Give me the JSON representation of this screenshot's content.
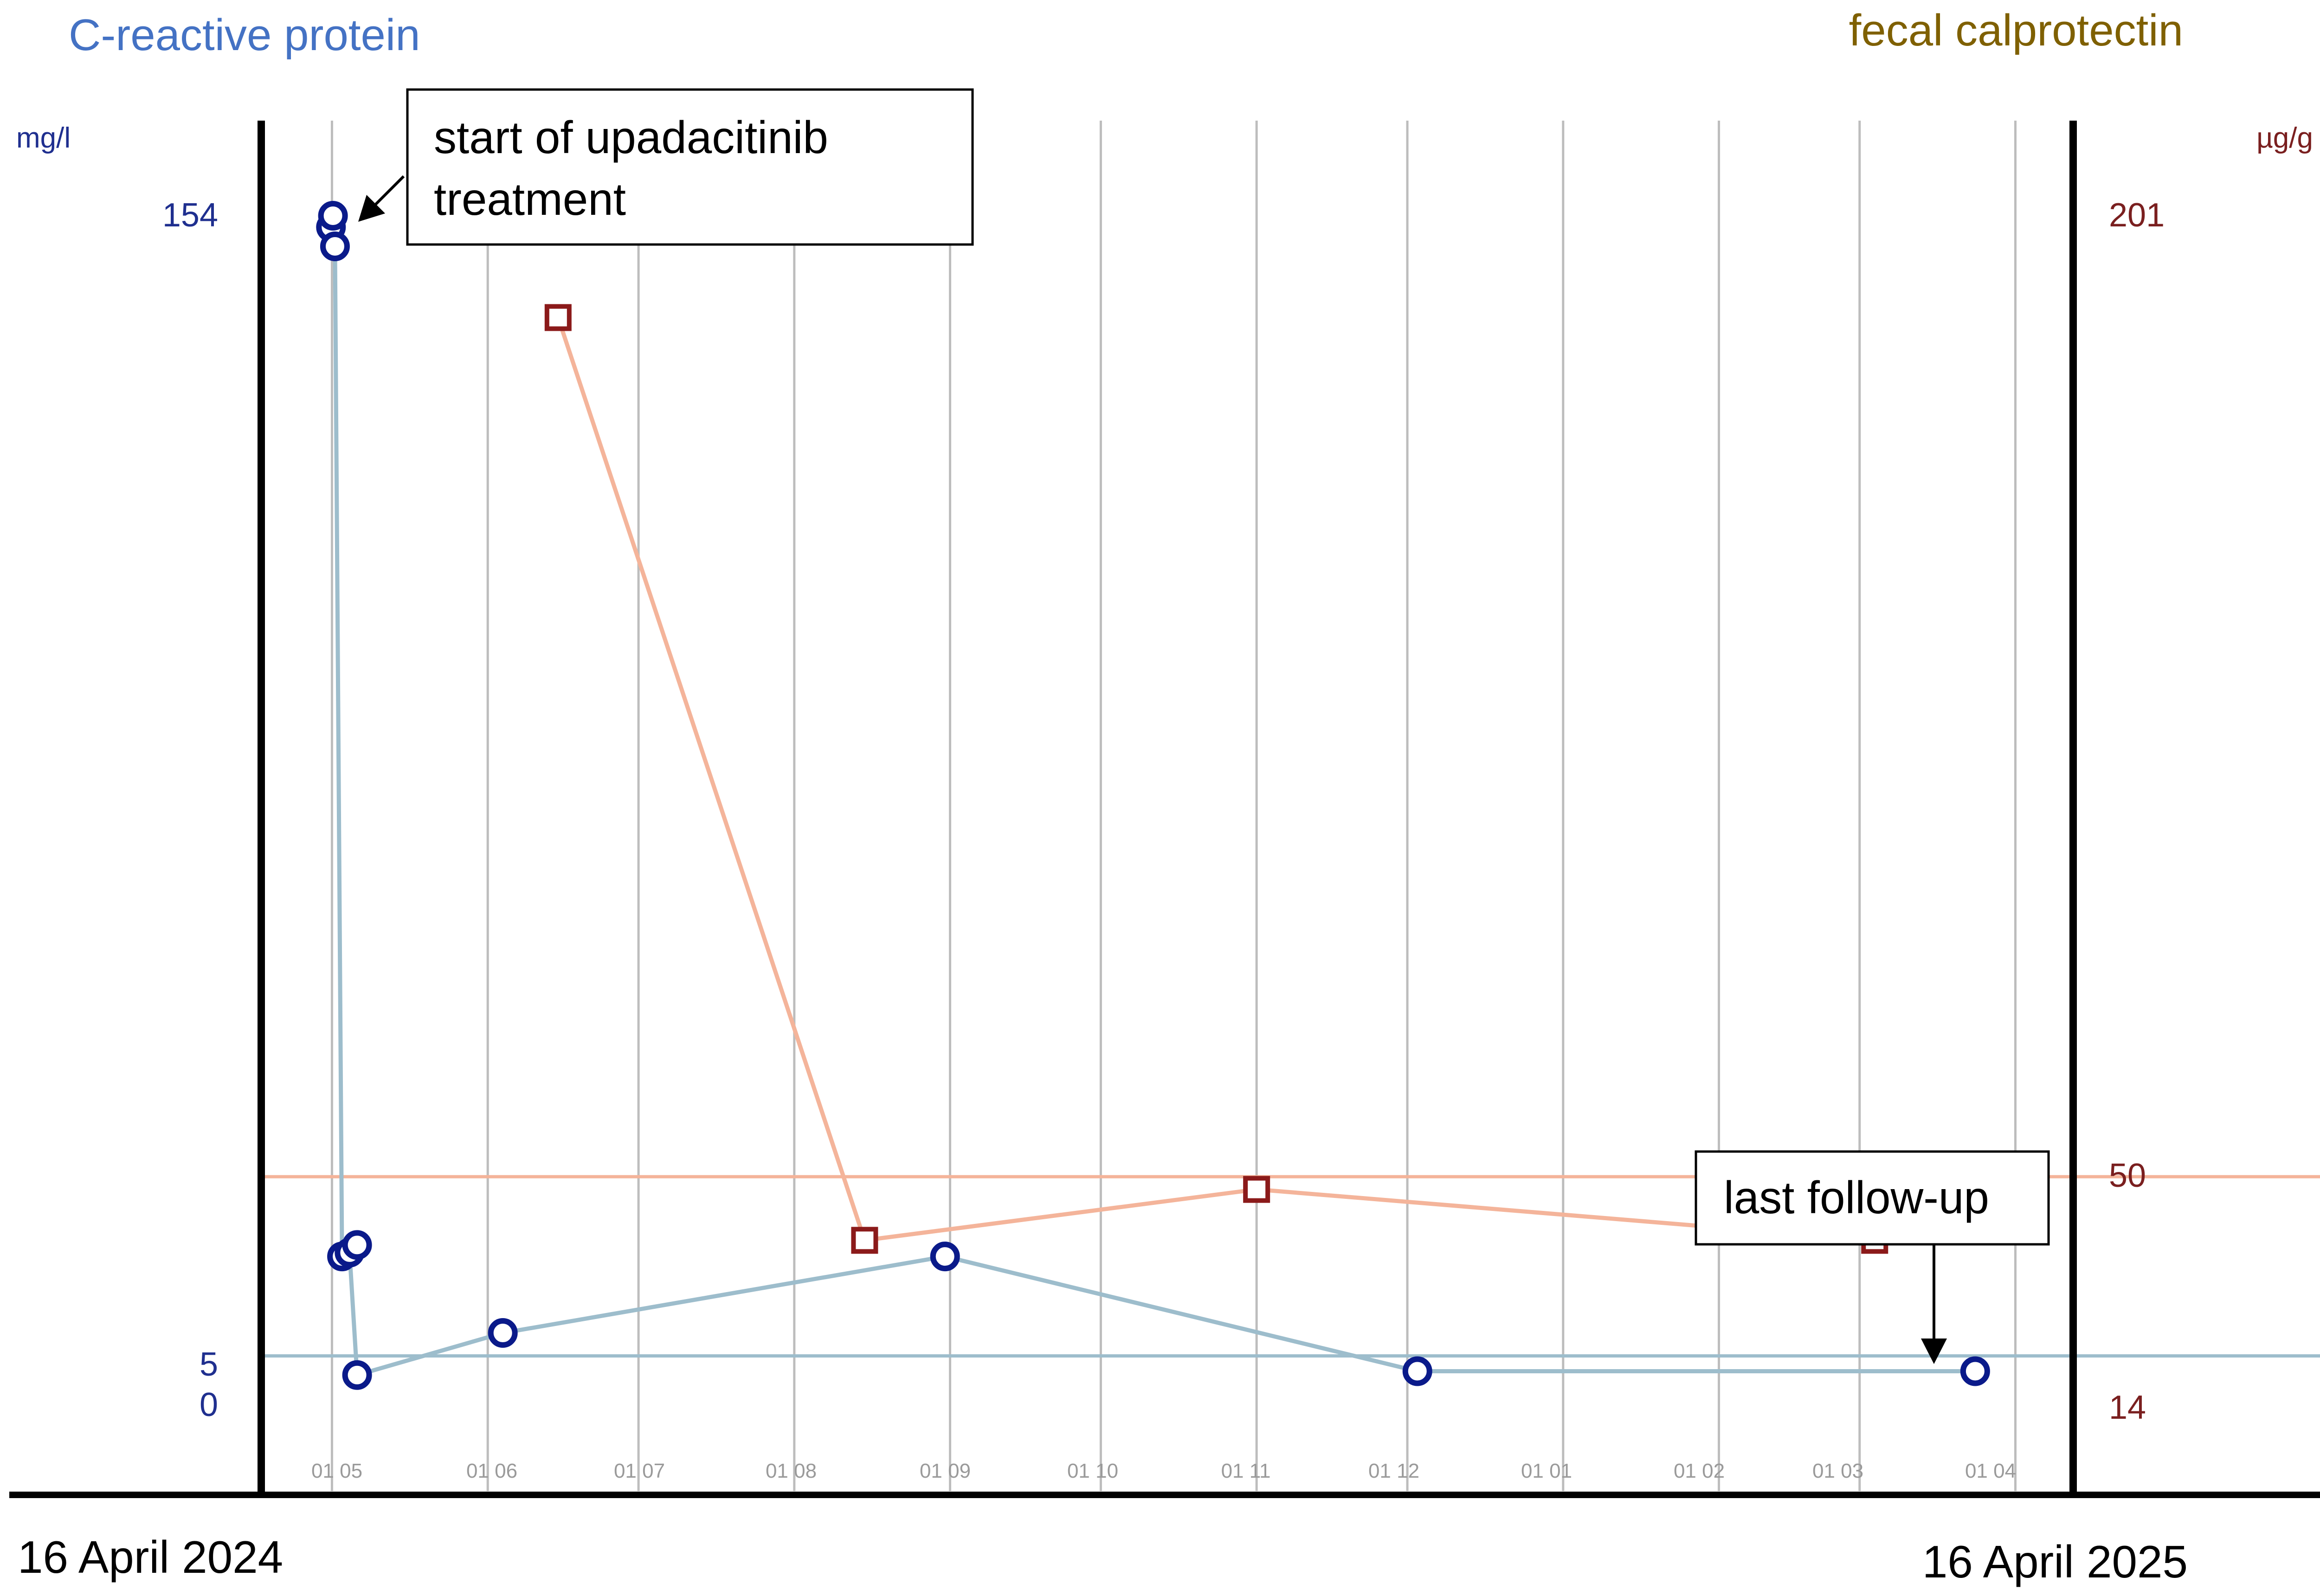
{
  "chart_data": {
    "type": "line",
    "title_left": "C-reactive protein",
    "title_right": "fecal calprotectin",
    "y_left": {
      "unit": "mg/l",
      "ticks": [
        "154",
        "5",
        "0"
      ],
      "values": [
        154,
        5,
        0
      ],
      "ylim": [
        0,
        154
      ]
    },
    "y_right": {
      "unit": "µg/g",
      "ticks": [
        "201",
        "50",
        "14"
      ],
      "values": [
        201,
        50,
        14
      ],
      "ylim": [
        14,
        201
      ]
    },
    "x": {
      "start_label": "16 April 2024",
      "end_label": "16 April 2025",
      "month_labels": [
        "01 05",
        "01 06",
        "01 07",
        "01 08",
        "01 09",
        "01 10",
        "01 11",
        "01 12",
        "01 01",
        "01 02",
        "01 03",
        "01 04"
      ],
      "unit": "days since 16 April 2024"
    },
    "reference_lines": [
      {
        "axis": "left",
        "value": 5,
        "color": "#9dbdcc"
      },
      {
        "axis": "right",
        "value": 50,
        "color": "#f4b49a"
      }
    ],
    "series": [
      {
        "name": "C-reactive protein",
        "axis": "left",
        "marker": "circle",
        "line_color": "#9dbdcc",
        "marker_color": "#0a1a8a",
        "points": [
          {
            "x": 14.8,
            "y": 152.5
          },
          {
            "x": 15.2,
            "y": 154
          },
          {
            "x": 15.6,
            "y": 150
          },
          {
            "x": 17,
            "y": 18
          },
          {
            "x": 18.5,
            "y": 18.5
          },
          {
            "x": 20,
            "y": 2.5
          },
          {
            "x": 49,
            "y": 8
          },
          {
            "x": 137,
            "y": 18
          },
          {
            "x": 231,
            "y": 3
          },
          {
            "x": 342,
            "y": 3
          },
          {
            "x": 20,
            "y": 19.5
          }
        ]
      },
      {
        "name": "fecal calprotectin",
        "axis": "right",
        "marker": "square",
        "line_color": "#f4b49a",
        "marker_color": "#8b1a1a",
        "points": [
          {
            "x": 60,
            "y": 185
          },
          {
            "x": 121,
            "y": 40
          },
          {
            "x": 199,
            "y": 48
          },
          {
            "x": 322,
            "y": 40
          }
        ]
      }
    ],
    "annotations": [
      {
        "text_line1": "start of upadacitinib",
        "text_line2": "treatment"
      },
      {
        "text": "last follow-up"
      }
    ]
  }
}
